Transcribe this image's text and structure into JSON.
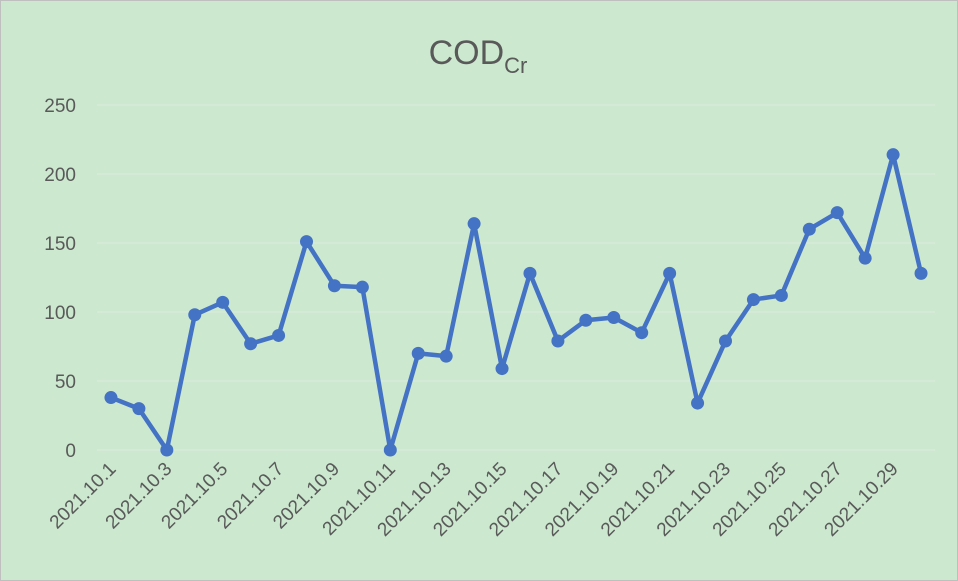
{
  "chart_data": {
    "type": "line",
    "title": "COD",
    "title_subscript": "Cr",
    "categories": [
      "2021.10.1",
      null,
      "2021.10.3",
      null,
      "2021.10.5",
      null,
      "2021.10.7",
      null,
      "2021.10.9",
      null,
      "2021.10.11",
      null,
      "2021.10.13",
      null,
      "2021.10.15",
      null,
      "2021.10.17",
      null,
      "2021.10.19",
      null,
      "2021.10.21",
      null,
      "2021.10.23",
      null,
      "2021.10.25",
      null,
      "2021.10.27",
      null,
      "2021.10.29",
      null
    ],
    "series": [
      {
        "name": "COD",
        "color": "#4472c4",
        "values": [
          38,
          30,
          0,
          98,
          107,
          77,
          83,
          151,
          119,
          118,
          0,
          70,
          68,
          164,
          59,
          128,
          79,
          94,
          96,
          85,
          128,
          34,
          79,
          109,
          112,
          160,
          172,
          139,
          214,
          128
        ]
      }
    ],
    "ylim": [
      0,
      250
    ],
    "yticks": [
      0,
      50,
      100,
      150,
      200,
      250
    ],
    "grid": true
  }
}
